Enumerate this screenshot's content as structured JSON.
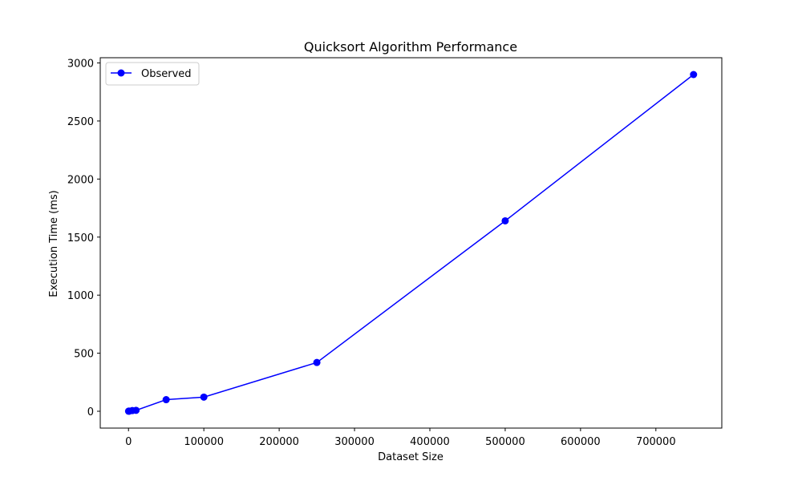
{
  "chart_data": {
    "type": "line",
    "title": "Quicksort Algorithm Performance",
    "xlabel": "Dataset Size",
    "ylabel": "Execution Time (ms)",
    "xlim": [
      -37500,
      787500
    ],
    "ylim": [
      -145,
      3045
    ],
    "xticks": [
      0,
      100000,
      200000,
      300000,
      400000,
      500000,
      600000,
      700000
    ],
    "yticks": [
      0,
      500,
      1000,
      1500,
      2000,
      2500,
      3000
    ],
    "grid": false,
    "legend_position": "upper left",
    "series": [
      {
        "name": "Observed",
        "color": "#0000ff",
        "marker": "circle",
        "x": [
          100,
          1000,
          5000,
          10000,
          50000,
          100000,
          250000,
          500000,
          750000
        ],
        "y": [
          0.5,
          1,
          6,
          8,
          100,
          122,
          420,
          1640,
          2900
        ]
      }
    ]
  }
}
